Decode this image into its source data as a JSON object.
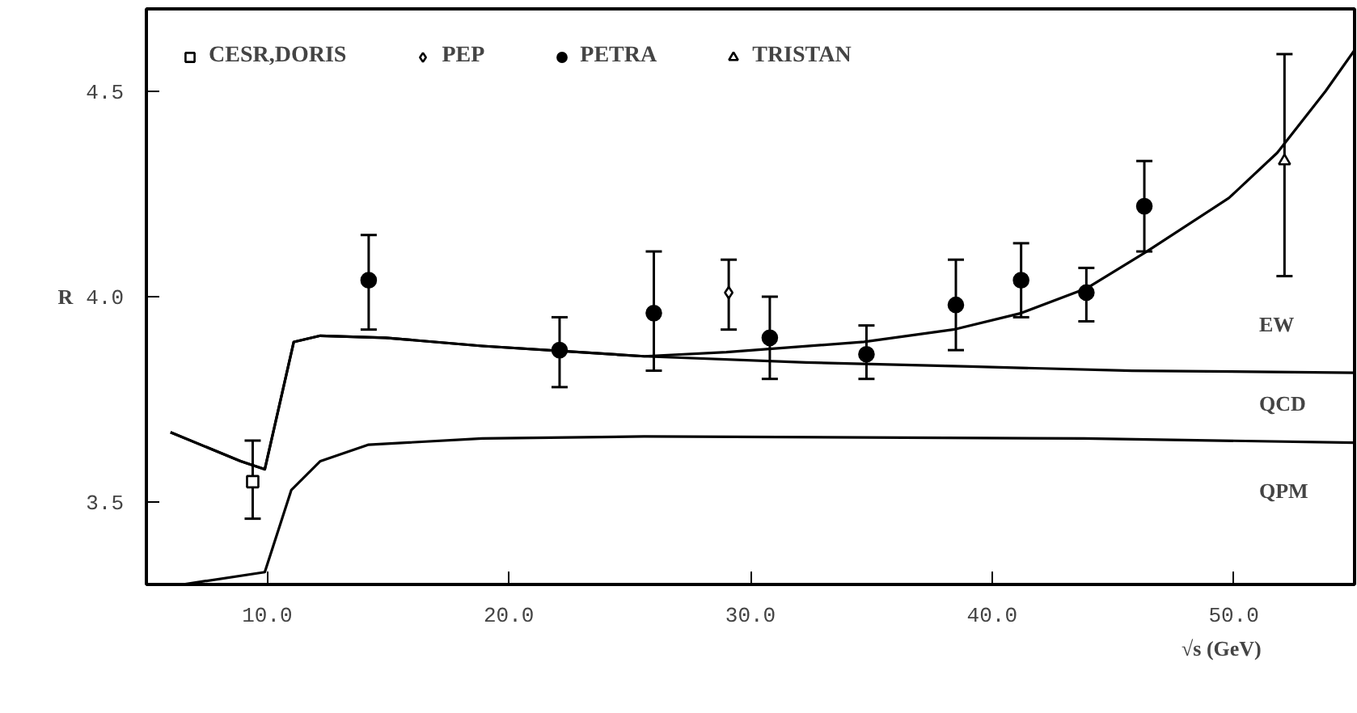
{
  "chart_data": {
    "type": "scatter",
    "xlabel": "√s (GeV)",
    "ylabel": "R",
    "xlim": [
      5,
      55
    ],
    "ylim": [
      3.3,
      4.7
    ],
    "xticks": [
      {
        "value": 10,
        "label": "10.0"
      },
      {
        "value": 20,
        "label": "20.0"
      },
      {
        "value": 30,
        "label": "30.0"
      },
      {
        "value": 40,
        "label": "40.0"
      },
      {
        "value": 50,
        "label": "50.0"
      }
    ],
    "yticks": [
      {
        "value": 3.5,
        "label": "3.5"
      },
      {
        "value": 4.0,
        "label": "4.0"
      },
      {
        "value": 4.5,
        "label": "4.5"
      }
    ],
    "grid": false,
    "legend": "top left",
    "series": [
      {
        "name": "CESR,DORIS",
        "marker": "square",
        "color": "#000000",
        "x": [
          9.4
        ],
        "values": [
          3.55
        ],
        "errors": [
          [
            3.46,
            3.65
          ]
        ]
      },
      {
        "name": "PEP",
        "marker": "diamond",
        "color": "#000000",
        "x": [
          29.1
        ],
        "values": [
          4.01
        ],
        "errors": [
          [
            3.92,
            4.09
          ]
        ]
      },
      {
        "name": "PETRA",
        "marker": "circle",
        "color": "#000000",
        "x": [
          14.2,
          22.1,
          26.0,
          30.8,
          34.8,
          38.5,
          41.2,
          43.9,
          46.3
        ],
        "values": [
          4.04,
          3.87,
          3.96,
          3.9,
          3.86,
          3.98,
          4.04,
          4.01,
          4.22
        ],
        "errors": [
          [
            3.92,
            4.15
          ],
          [
            3.78,
            3.95
          ],
          [
            3.82,
            4.11
          ],
          [
            3.8,
            4.0
          ],
          [
            3.8,
            3.93
          ],
          [
            3.87,
            4.09
          ],
          [
            3.95,
            4.13
          ],
          [
            3.94,
            4.07
          ],
          [
            4.11,
            4.33
          ]
        ]
      },
      {
        "name": "TRISTAN",
        "marker": "triangle",
        "color": "#000000",
        "x": [
          52.1
        ],
        "values": [
          4.33
        ],
        "errors": [
          [
            4.05,
            4.59
          ]
        ]
      },
      {
        "type": "line",
        "color": "#000000",
        "x": [
          6.5,
          9.9,
          11.0,
          12.2,
          14.2,
          18.9,
          25.6,
          43.8,
          55
        ],
        "values": [
          3.3,
          3.33,
          3.53,
          3.6,
          3.64,
          3.655,
          3.66,
          3.655,
          3.645
        ]
      },
      {
        "type": "line",
        "color": "#000000",
        "x": [
          6.0,
          8.9,
          9.9,
          11.1,
          12.2,
          14.9,
          18.9,
          25.6,
          32.3,
          39.1,
          45.8,
          55
        ],
        "values": [
          3.67,
          3.6,
          3.58,
          3.89,
          3.905,
          3.9,
          3.88,
          3.855,
          3.84,
          3.83,
          3.82,
          3.815
        ]
      },
      {
        "type": "line",
        "color": "#000000",
        "x": [
          6.0,
          8.9,
          9.9,
          11.1,
          12.2,
          14.9,
          18.9,
          25.6,
          29.0,
          34.7,
          38.4,
          41.2,
          43.9,
          46.4,
          49.8,
          51.8,
          53.8,
          55
        ],
        "values": [
          3.67,
          3.6,
          3.58,
          3.89,
          3.905,
          3.9,
          3.88,
          3.855,
          3.865,
          3.89,
          3.92,
          3.96,
          4.02,
          4.11,
          4.24,
          4.35,
          4.5,
          4.6
        ]
      }
    ],
    "annotations": [
      "EW",
      "QCD",
      "QPM"
    ]
  }
}
